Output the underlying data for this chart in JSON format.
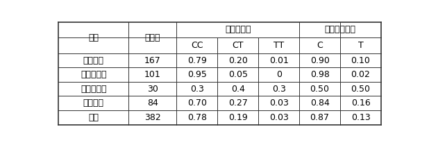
{
  "group_header": "基因型频率",
  "allele_header": "等位基因频率",
  "col0_header": "群体",
  "col1_header": "样本数",
  "sub_headers": [
    "CC",
    "CT",
    "TT",
    "C",
    "T"
  ],
  "rows": [
    [
      "福建白兔",
      "167",
      "0.79",
      "0.20",
      "0.01",
      "0.90",
      "0.10"
    ],
    [
      "闽西南黑兔",
      "101",
      "0.95",
      "0.05",
      "0",
      "0.98",
      "0.02"
    ],
    [
      "新西兰白兔",
      "30",
      "0.3",
      "0.4",
      "0.3",
      "0.50",
      "0.50"
    ],
    [
      "福建黄兔",
      "84",
      "0.70",
      "0.27",
      "0.03",
      "0.84",
      "0.16"
    ],
    [
      "共计",
      "382",
      "0.78",
      "0.19",
      "0.03",
      "0.87",
      "0.13"
    ]
  ],
  "col_widths_rel": [
    1.45,
    1.0,
    0.85,
    0.85,
    0.85,
    0.85,
    0.85
  ],
  "background_color": "#ffffff",
  "border_color": "#333333",
  "text_color": "#000000",
  "fontsize": 9,
  "fig_width": 6.18,
  "fig_height": 2.09,
  "dpi": 100
}
